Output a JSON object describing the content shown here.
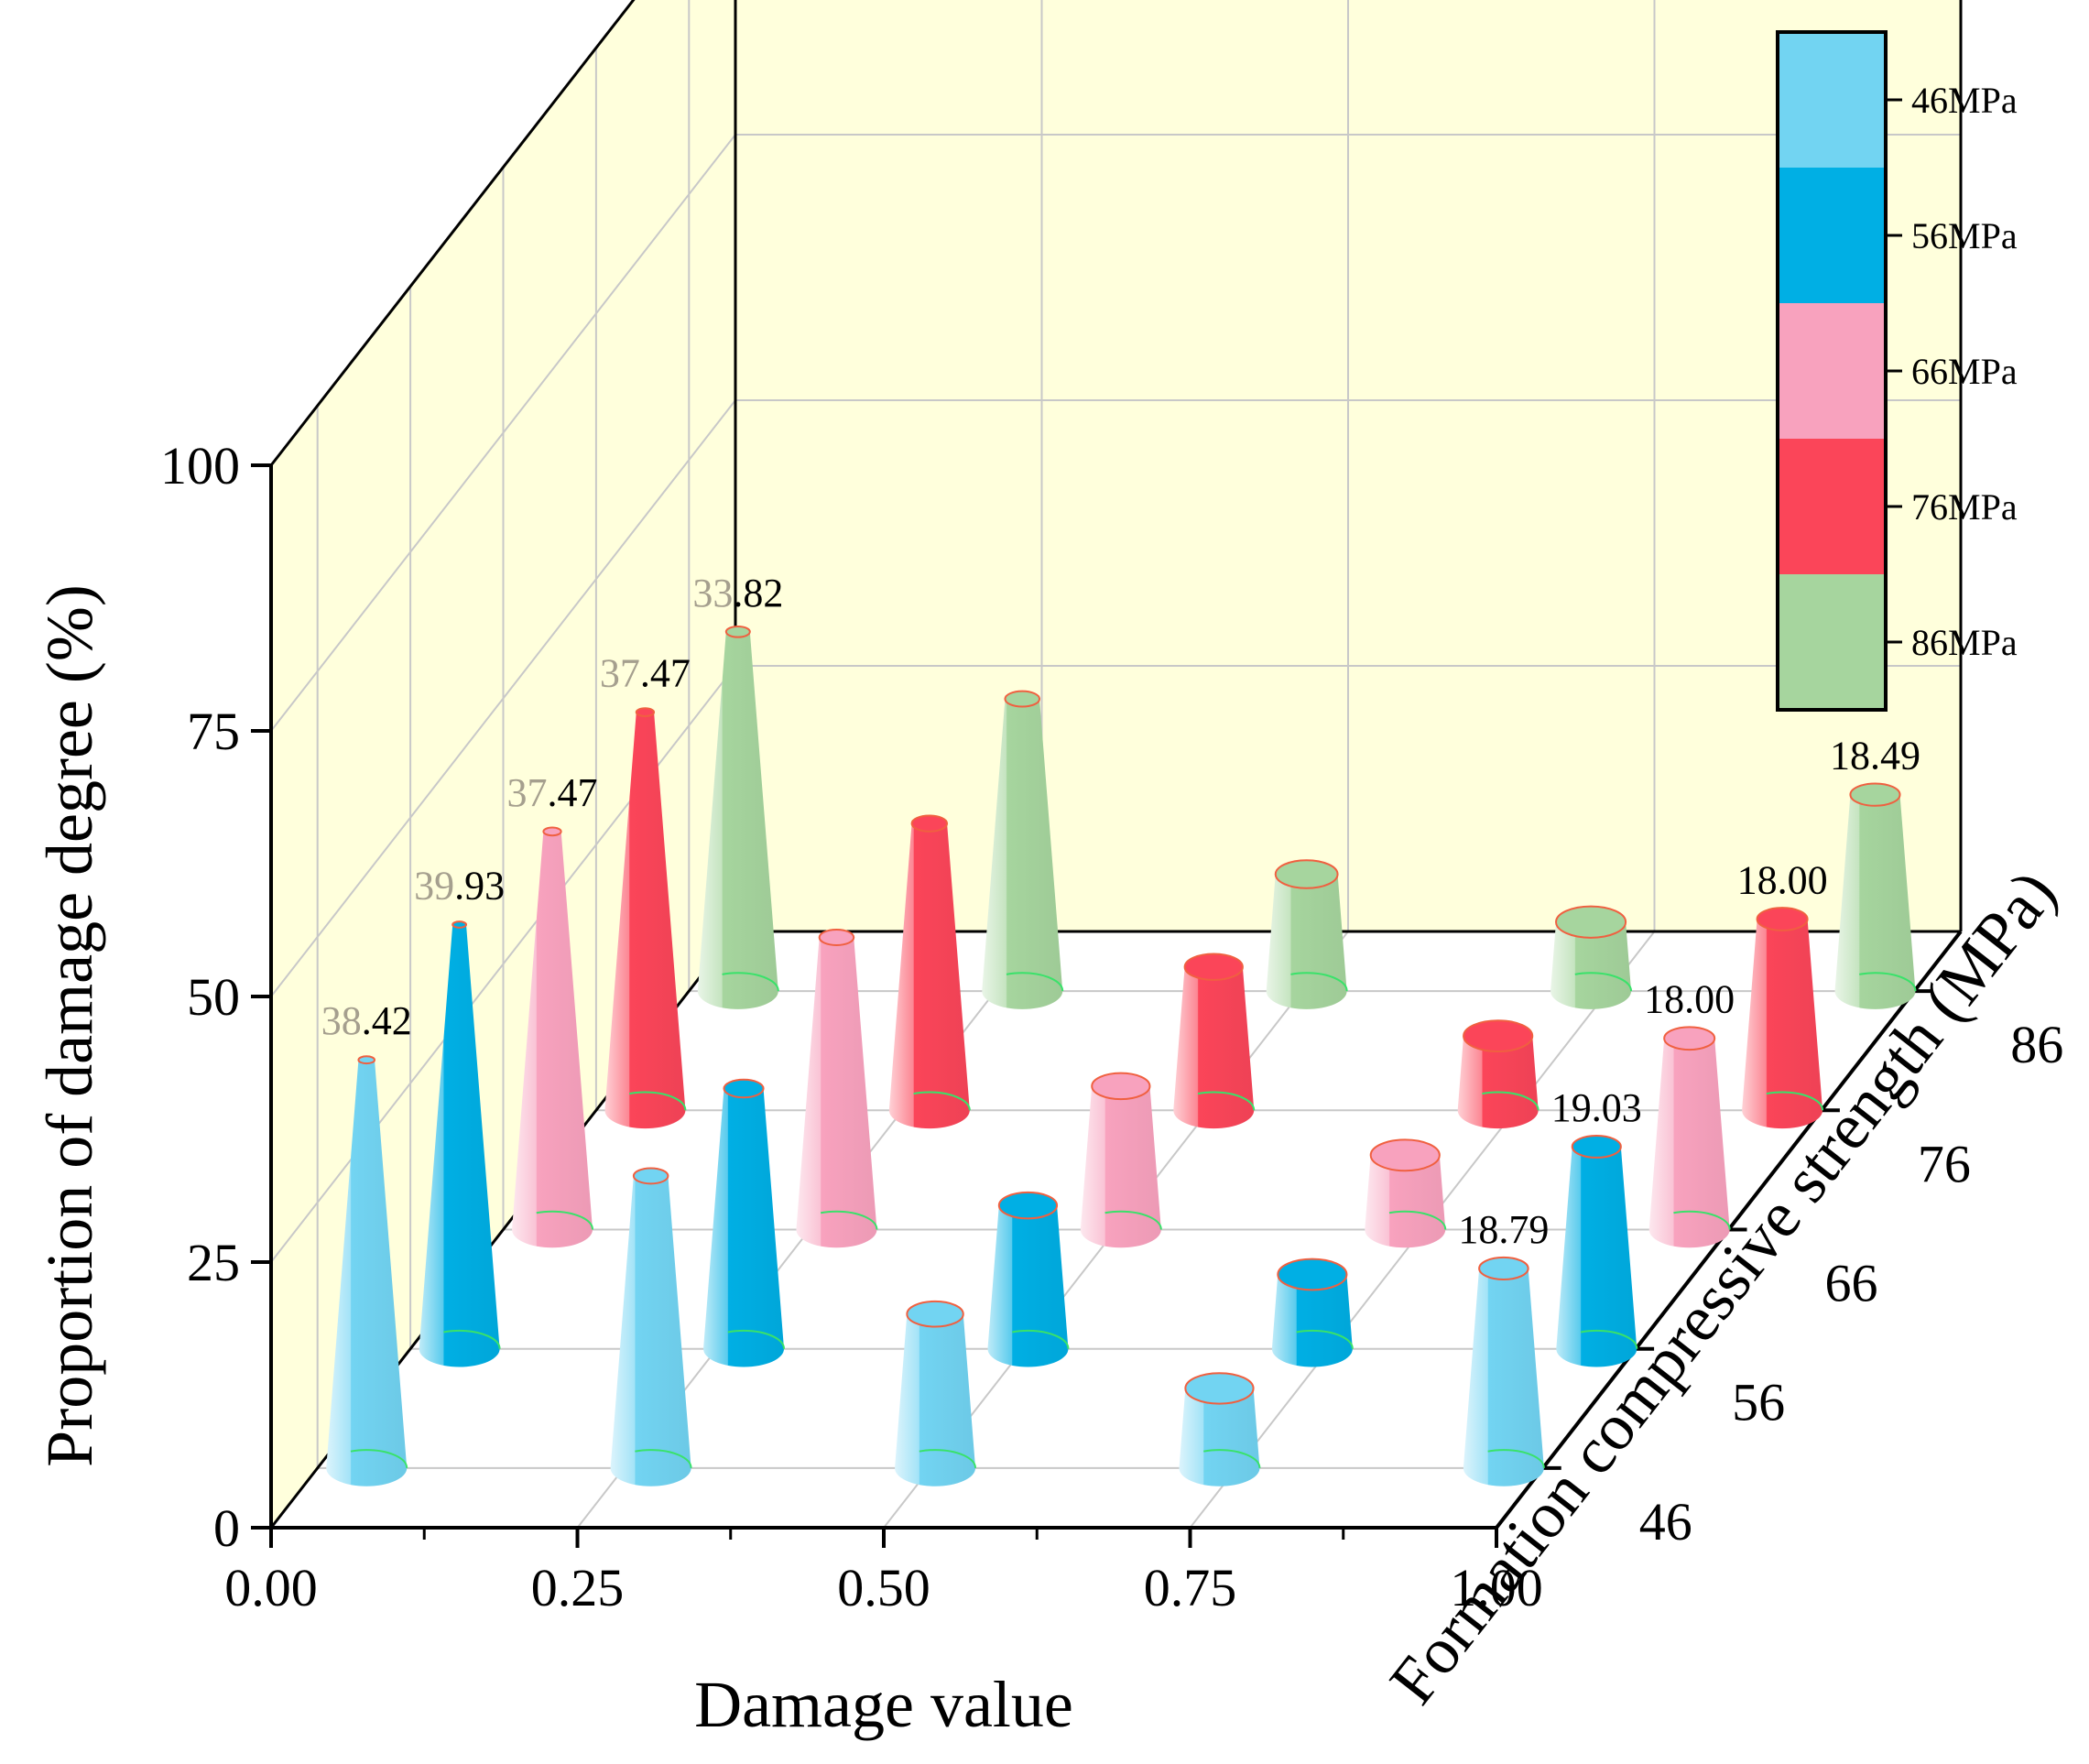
{
  "chart_data": {
    "type": "bar",
    "subtype": "3d-cone",
    "title": "",
    "xlabel": "Damage value",
    "ylabel": "Proportion of damage degree (%)",
    "zlabel": "Formation compressive strength (MPa)",
    "x_ticks": [
      "0.00",
      "0.25",
      "0.50",
      "0.75",
      "1.00"
    ],
    "y_ticks": [
      "0",
      "25",
      "50",
      "75",
      "100"
    ],
    "z_ticks": [
      "46",
      "56",
      "66",
      "76",
      "86"
    ],
    "ylim": [
      0,
      100
    ],
    "grid": true,
    "legend_position": "top-right",
    "backwall_color": "#ffffdc",
    "categories": [
      "0.00",
      "0.25",
      "0.50",
      "0.75",
      "1.00"
    ],
    "series": [
      {
        "name": "46MPa",
        "color": "#72d4f2",
        "values": [
          38.42,
          27.5,
          14.5,
          7.5,
          18.79
        ],
        "labels": [
          {
            "category": "0.00",
            "text": "38.42",
            "faded_prefix": "38",
            "rest": ".42"
          },
          {
            "category": "1.00",
            "text": "18.79",
            "faded_prefix": "",
            "rest": "18.79"
          }
        ]
      },
      {
        "name": "56MPa",
        "color": "#00afe4",
        "values": [
          39.93,
          24.5,
          13.5,
          7.0,
          19.03
        ],
        "labels": [
          {
            "category": "0.00",
            "text": "39.93",
            "faded_prefix": "39",
            "rest": ".93"
          },
          {
            "category": "1.00",
            "text": "19.03",
            "faded_prefix": "",
            "rest": "19.03"
          }
        ]
      },
      {
        "name": "66MPa",
        "color": "#f8a2be",
        "values": [
          37.47,
          27.5,
          13.5,
          7.0,
          18.0
        ],
        "labels": [
          {
            "category": "0.00",
            "text": "37.47",
            "faded_prefix": "37",
            "rest": ".47"
          },
          {
            "category": "1.00",
            "text": "18.00",
            "faded_prefix": "",
            "rest": "18.00"
          }
        ]
      },
      {
        "name": "76MPa",
        "color": "#fb4559",
        "values": [
          37.47,
          27.0,
          13.5,
          7.0,
          18.0
        ],
        "labels": [
          {
            "category": "0.00",
            "text": "37.47",
            "faded_prefix": "37",
            "rest": ".47"
          },
          {
            "category": "1.00",
            "text": "18.00",
            "faded_prefix": "",
            "rest": "18.00"
          }
        ]
      },
      {
        "name": "86MPa",
        "color": "#a6d59e",
        "values": [
          33.82,
          27.5,
          11.0,
          6.5,
          18.49
        ],
        "labels": [
          {
            "category": "0.00",
            "text": "33.82",
            "faded_prefix": "33",
            "rest": ".82"
          },
          {
            "category": "1.00",
            "text": "18.49",
            "faded_prefix": "",
            "rest": "18.49"
          }
        ]
      }
    ]
  }
}
